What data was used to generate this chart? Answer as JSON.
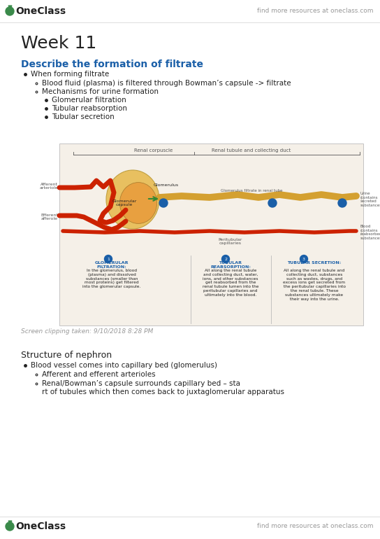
{
  "bg_color": "#ffffff",
  "header_logo_color": "#3a8a4a",
  "header_logo_text": "OneClass",
  "header_right_text": "find more resources at oneclass.com",
  "header_text_color": "#999999",
  "week_title": "Week 11",
  "week_title_size": 18,
  "section_heading": "Describe the formation of filtrate",
  "section_heading_color": "#1a5fa8",
  "section_heading_size": 10,
  "bullet1": "When forming filtrate",
  "sub1a": "Blood fluid (plasma) is filtered through Bowman’s capsule -> filtrate",
  "sub1b": "Mechanisms for urine formation",
  "subsub1": "Glomerular filtration",
  "subsub2": "Tubular reabsorption",
  "subsub3": "Tubular secretion",
  "screenshot_text": "Screen clipping taken: 9/10/2018 8:28 PM",
  "screenshot_color": "#999999",
  "structure_heading": "Structure of nephron",
  "struct_b1": "Blood vessel comes into capillary bed (glomerulus)",
  "struct_s1": "Afferent and efferent arterioles",
  "struct_s2": "Renal/Bowman’s capsule surrounds capillary bed – start of tubules which then comes back to juxtaglomerular apparatus",
  "text_color": "#222222",
  "divider_color": "#dddddd",
  "body_size": 7.5,
  "small_size": 6.0,
  "footer_logo_color": "#3a8a4a",
  "footer_logo_text": "OneClass",
  "diagram_bg": "#f5f0e8",
  "diagram_border": "#bbbbbb",
  "red_color": "#cc2200",
  "gold_color": "#d4a030",
  "tan_color": "#e8c060",
  "blue_dot_color": "#1a5fa8",
  "green_arrow_color": "#338833",
  "label_color": "#555555",
  "blue_text_color": "#1a5fa8"
}
